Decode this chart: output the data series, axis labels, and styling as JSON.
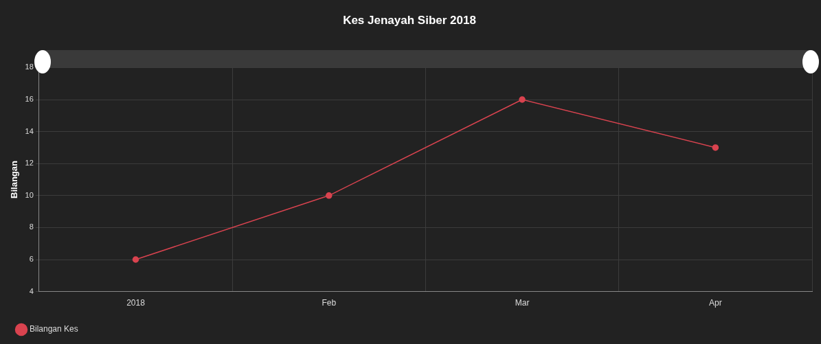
{
  "chart_data": {
    "type": "line",
    "title": "Kes Jenayah Siber 2018",
    "ylabel": "Bilangan",
    "categories": [
      "2018",
      "Feb",
      "Mar",
      "Apr"
    ],
    "series": [
      {
        "name": "Bilangan Kes",
        "color": "#d9434f",
        "values": [
          6,
          10,
          16,
          13
        ]
      }
    ],
    "ylim": [
      4,
      18
    ],
    "yticks": [
      4,
      6,
      8,
      10,
      12,
      14,
      16,
      18
    ],
    "grid": true,
    "legend": "bottom left",
    "marker": "circle",
    "line_style": "solid"
  }
}
